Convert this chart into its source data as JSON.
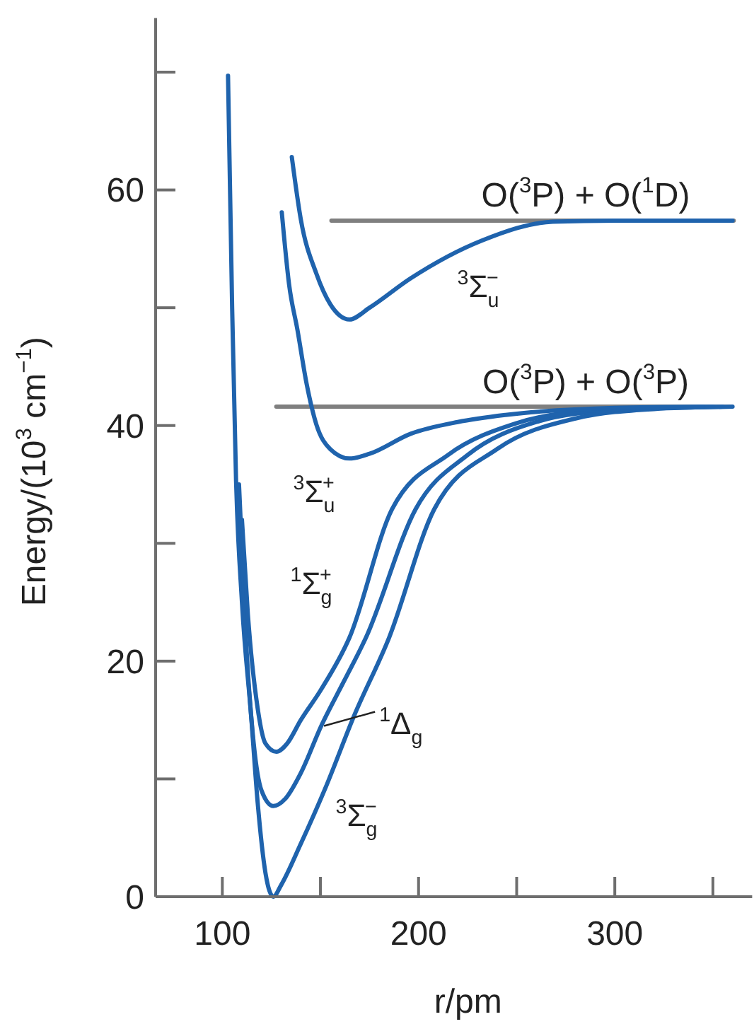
{
  "chart_data": {
    "type": "line",
    "xlabel": "r/pm",
    "ylabel": "Energy/(10$^{3}$ cm$^{−1}$)",
    "xlim": [
      66,
      370
    ],
    "ylim": [
      0,
      74.6
    ],
    "xticks": [
      100,
      {
        "value": 150,
        "label": null
      },
      200,
      {
        "value": 250,
        "label": null
      },
      300,
      {
        "value": 350,
        "label": null
      }
    ],
    "yticks": [
      0,
      {
        "value": 10,
        "label": null
      },
      20,
      {
        "value": 30,
        "label": null
      },
      40,
      {
        "value": 50,
        "label": null
      },
      60,
      {
        "value": 70,
        "label": null
      }
    ],
    "grid": false,
    "marker": "none",
    "line_style": "solid",
    "series": [
      {
        "name": "O($^{3}$P) + O($^{1}$D)",
        "color": "#7f7f7f",
        "x": [
          155.6,
          360.6
        ],
        "values": [
          57.4,
          57.4
        ]
      },
      {
        "name": "O($^{3}$P) + O($^{3}$P)",
        "color": "#7f7f7f",
        "x": [
          127.5,
          358.7
        ],
        "values": [
          41.6,
          41.6
        ]
      },
      {
        "name": "$^{3}$Σ$_{g}$$^{−}$",
        "color": "#1f63ad",
        "x": [
          102.9,
          105,
          107,
          110,
          114.7,
          118,
          122,
          126,
          130,
          140,
          152.7,
          167,
          185,
          208,
          240,
          280,
          320,
          360
        ],
        "values": [
          69.7,
          50,
          35.3,
          25,
          15.3,
          8,
          2,
          0,
          1,
          4.5,
          9.3,
          15.3,
          22,
          32.9,
          38,
          40.6,
          41.4,
          41.6
        ]
      },
      {
        "color": "#1f63ad",
        "x": [
          108.5,
          112,
          116,
          120,
          126,
          132,
          140,
          150.4,
          162,
          173.2,
          198.5,
          225,
          260,
          300,
          355
        ],
        "values": [
          35,
          22,
          13,
          9,
          7.7,
          8.3,
          10.5,
          14.5,
          18.3,
          22,
          32.9,
          37.5,
          40.3,
          41.3,
          41.6
        ]
      },
      {
        "name": "$^{1}$Σ$_{g}$$^{+}$",
        "color": "#1f63ad",
        "x": [
          110,
          113,
          118,
          122,
          127.5,
          133,
          140,
          150,
          164.8,
          186.5,
          215,
          250,
          290,
          350
        ],
        "values": [
          32,
          24,
          16,
          13,
          12.3,
          13,
          15,
          17.5,
          22,
          32.9,
          37.5,
          40.2,
          41.3,
          41.6
        ]
      },
      {
        "name": "$^{3}$Σ$_{u}$$^{+}$",
        "color": "#1f63ad",
        "x": [
          130.3,
          134,
          138.3,
          143,
          147.9,
          155,
          164.8,
          175,
          196,
          220,
          244.3,
          300,
          345
        ],
        "values": [
          58.1,
          52,
          48.1,
          43.5,
          40.1,
          38,
          37.2,
          37.6,
          39.3,
          40.3,
          40.9,
          41.5,
          41.6
        ]
      },
      {
        "name": "$^{3}$Σ$_{u}$$^{−}$",
        "color": "#1f63ad",
        "x": [
          135.4,
          140,
          147.9,
          155,
          164.8,
          175,
          196,
          232.2,
          268.4,
          300,
          360
        ],
        "values": [
          62.8,
          57.5,
          52.9,
          50.3,
          49,
          50,
          52.5,
          55.7,
          57.3,
          57.4,
          57.4
        ]
      }
    ],
    "annotations": [
      {
        "text": "$^{1}$Δ$_{g}$",
        "x": 150.4,
        "y": 14.5
      }
    ]
  }
}
